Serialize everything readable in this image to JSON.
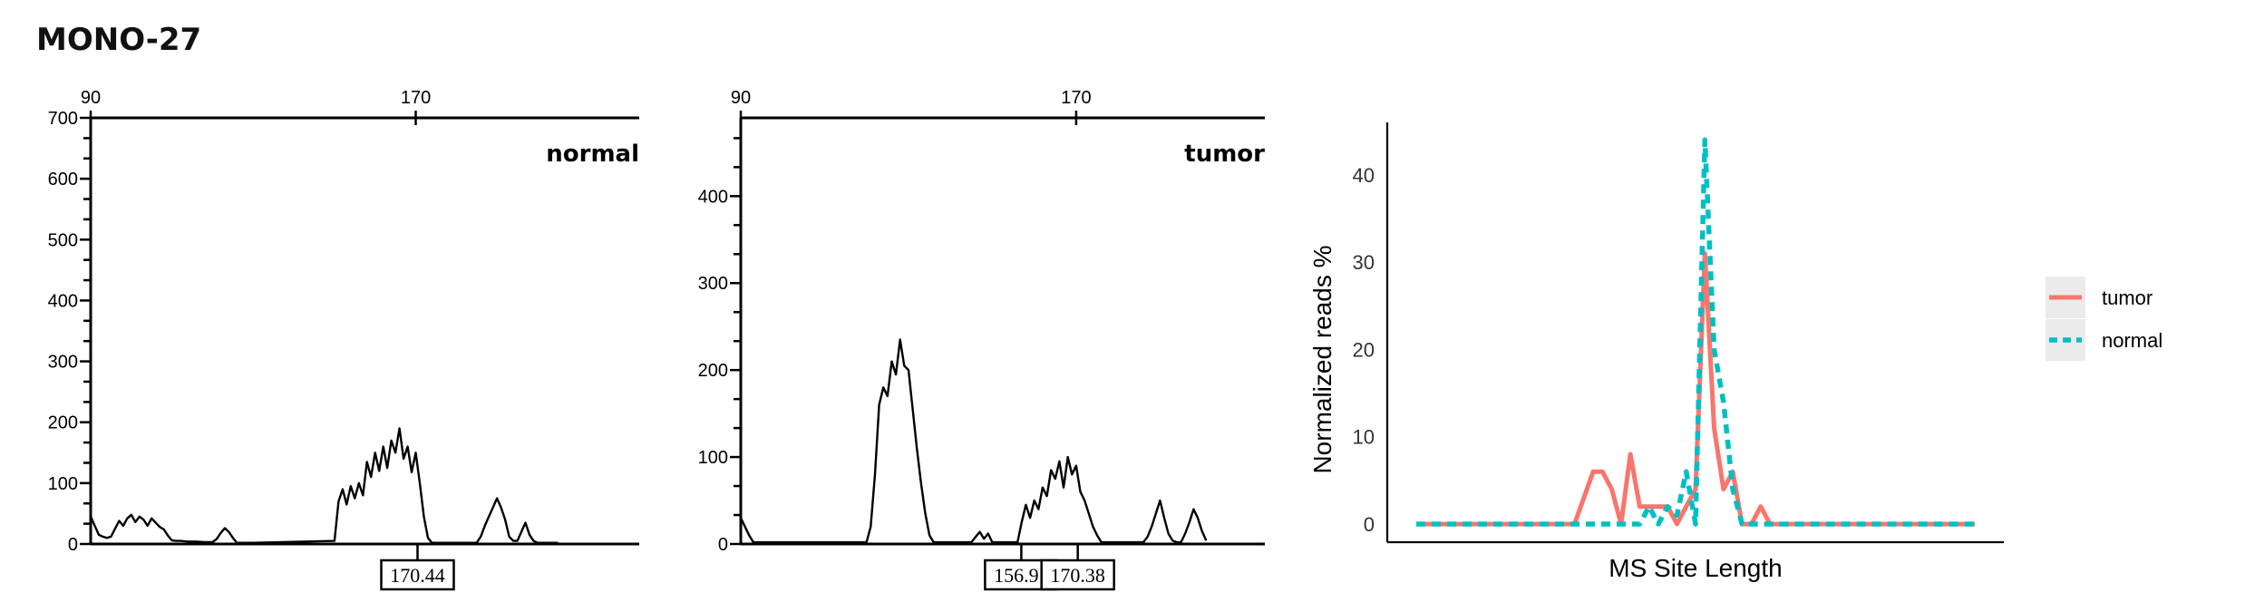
{
  "title": "MONO-27",
  "chart_data": [
    {
      "type": "line",
      "panel_label": "normal",
      "x_ticks": [
        90,
        170
      ],
      "y_ticks": [
        0,
        100,
        200,
        300,
        400,
        500,
        600,
        700
      ],
      "ylim": [
        0,
        700
      ],
      "xlim": [
        90,
        225
      ],
      "peak_labels": [
        {
          "x": 170.44,
          "label": "170.44"
        }
      ],
      "series": [
        {
          "x": [
            90,
            91,
            92,
            93,
            94,
            95,
            96,
            97,
            98,
            99,
            100,
            101,
            102,
            103,
            104,
            105,
            106,
            107,
            108,
            109,
            110,
            111,
            112,
            114,
            116,
            118,
            120,
            121,
            122,
            123,
            124,
            125,
            126,
            130,
            150,
            151,
            152,
            153,
            154,
            155,
            156,
            157,
            158,
            159,
            160,
            161,
            162,
            163,
            164,
            165,
            166,
            167,
            168,
            169,
            170,
            171,
            172,
            173,
            174,
            176,
            177,
            178,
            185,
            186,
            187,
            188,
            189,
            190,
            191,
            192,
            193,
            194,
            195,
            196,
            197,
            198,
            199,
            200,
            201,
            205
          ],
          "y": [
            45,
            30,
            15,
            12,
            10,
            12,
            25,
            38,
            30,
            42,
            48,
            36,
            45,
            40,
            30,
            42,
            35,
            28,
            24,
            14,
            6,
            5,
            5,
            4,
            4,
            3,
            3,
            8,
            18,
            26,
            20,
            10,
            2,
            2,
            5,
            70,
            90,
            65,
            95,
            75,
            100,
            80,
            135,
            110,
            150,
            120,
            160,
            125,
            170,
            150,
            190,
            140,
            160,
            118,
            150,
            100,
            45,
            10,
            2,
            2,
            2,
            2,
            2,
            12,
            30,
            45,
            60,
            75,
            60,
            40,
            12,
            5,
            5,
            20,
            35,
            15,
            5,
            2,
            2,
            2
          ]
        }
      ]
    },
    {
      "type": "line",
      "panel_label": "tumor",
      "x_ticks": [
        90,
        170
      ],
      "y_ticks": [
        0,
        100,
        200,
        300,
        400
      ],
      "ylim": [
        0,
        490
      ],
      "xlim": [
        90,
        215
      ],
      "peak_labels": [
        {
          "x": 156.91,
          "label": "156.91"
        },
        {
          "x": 170.38,
          "label": "170.38"
        }
      ],
      "series": [
        {
          "x": [
            90,
            91,
            92,
            93,
            94,
            95,
            120,
            121,
            122,
            123,
            124,
            125,
            126,
            127,
            128,
            129,
            130,
            131,
            132,
            133,
            134,
            135,
            136,
            137,
            138,
            139,
            140,
            145,
            146,
            147,
            148,
            149,
            150,
            155,
            156,
            157,
            158,
            159,
            160,
            161,
            162,
            163,
            164,
            165,
            166,
            167,
            168,
            169,
            170,
            171,
            172,
            173,
            174,
            175,
            176,
            177,
            178,
            185,
            186,
            187,
            188,
            189,
            190,
            191,
            192,
            193,
            194,
            195,
            196,
            197,
            198,
            199,
            200,
            201
          ],
          "y": [
            30,
            20,
            10,
            2,
            2,
            2,
            2,
            20,
            80,
            160,
            180,
            170,
            210,
            195,
            235,
            205,
            200,
            155,
            110,
            70,
            35,
            10,
            2,
            2,
            2,
            2,
            2,
            2,
            8,
            14,
            6,
            12,
            2,
            2,
            2,
            25,
            45,
            30,
            50,
            40,
            65,
            55,
            85,
            75,
            95,
            65,
            100,
            80,
            90,
            60,
            50,
            35,
            20,
            10,
            2,
            2,
            2,
            2,
            2,
            8,
            20,
            35,
            50,
            30,
            12,
            4,
            2,
            2,
            12,
            25,
            40,
            30,
            15,
            4
          ]
        }
      ]
    },
    {
      "type": "line",
      "xlabel": "MS Site Length",
      "ylabel": "Normalized reads %",
      "y_ticks": [
        0,
        10,
        20,
        30,
        40
      ],
      "ylim": [
        0,
        46
      ],
      "legend": "right",
      "colors": {
        "tumor": "#F8766D",
        "normal": "#00BFC4"
      },
      "series": [
        {
          "name": "tumor",
          "x": [
            1,
            2,
            3,
            4,
            5,
            6,
            7,
            8,
            9,
            10,
            11,
            12,
            13,
            14,
            15,
            16,
            17,
            18,
            19,
            20,
            21,
            22,
            23,
            24,
            25,
            26,
            27,
            28,
            29,
            30,
            31,
            32,
            33,
            34,
            35,
            36,
            37,
            38,
            39,
            40,
            41,
            42,
            43,
            44,
            45,
            46,
            47,
            48,
            49,
            50,
            51,
            52,
            53,
            54,
            55,
            56,
            57,
            58,
            59,
            60,
            61
          ],
          "y": [
            0,
            0,
            0,
            0,
            0,
            0,
            0,
            0,
            0,
            0,
            0,
            0,
            0,
            0,
            0,
            0,
            0,
            0,
            3,
            6,
            6,
            4,
            0,
            8,
            2,
            2,
            2,
            2,
            0,
            2,
            4,
            31,
            11,
            4,
            6,
            0,
            0,
            2,
            0,
            0,
            0,
            0,
            0,
            0,
            0,
            0,
            0,
            0,
            0,
            0,
            0,
            0,
            0,
            0,
            0,
            0,
            0,
            0,
            0,
            0,
            0
          ]
        },
        {
          "name": "normal",
          "x": [
            1,
            2,
            3,
            4,
            5,
            6,
            7,
            8,
            9,
            10,
            11,
            12,
            13,
            14,
            15,
            16,
            17,
            18,
            19,
            20,
            21,
            22,
            23,
            24,
            25,
            26,
            27,
            28,
            29,
            30,
            31,
            32,
            33,
            34,
            35,
            36,
            37,
            38,
            39,
            40,
            41,
            42,
            43,
            44,
            45,
            46,
            47,
            48,
            49,
            50,
            51,
            52,
            53,
            54,
            55,
            56,
            57,
            58,
            59,
            60,
            61
          ],
          "y": [
            0,
            0,
            0,
            0,
            0,
            0,
            0,
            0,
            0,
            0,
            0,
            0,
            0,
            0,
            0,
            0,
            0,
            0,
            0,
            0,
            0,
            0,
            0,
            0,
            0,
            2,
            0,
            2,
            1,
            6,
            0,
            44,
            20,
            14,
            4,
            0,
            0,
            0,
            0,
            0,
            0,
            0,
            0,
            0,
            0,
            0,
            0,
            0,
            0,
            0,
            0,
            0,
            0,
            0,
            0,
            0,
            0,
            0,
            0,
            0,
            0
          ]
        }
      ]
    }
  ]
}
